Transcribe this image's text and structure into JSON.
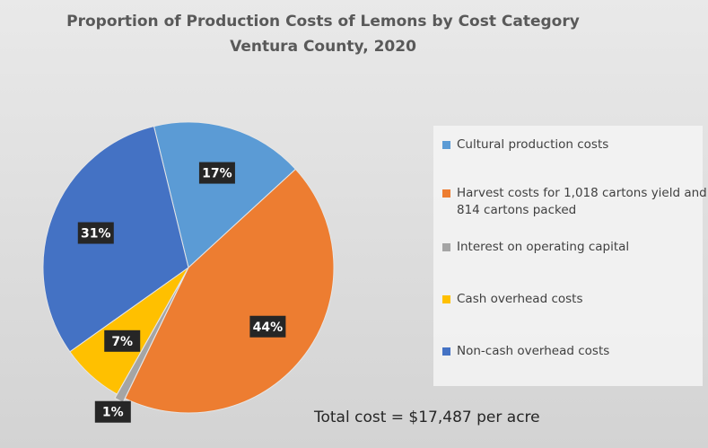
{
  "chart_data": {
    "type": "pie",
    "title": "Proportion of Production Costs of Lemons by Cost Category",
    "subtitle": "Ventura County, 2020",
    "categories": [
      "Cultural production costs",
      "Harvest costs for 1,018 cartons yield and 814 cartons packed",
      "Interest on operating capital",
      "Cash overhead costs",
      "Non-cash overhead costs"
    ],
    "values": [
      17,
      44,
      1,
      7,
      31
    ],
    "value_labels": [
      "17%",
      "44%",
      "1%",
      "7%",
      "31%"
    ],
    "colors": [
      "#5b9bd5",
      "#ed7d31",
      "#a5a5a5",
      "#ffc000",
      "#4472c4"
    ],
    "legend": "right",
    "annotation": "Total cost = $17,487 per acre"
  }
}
